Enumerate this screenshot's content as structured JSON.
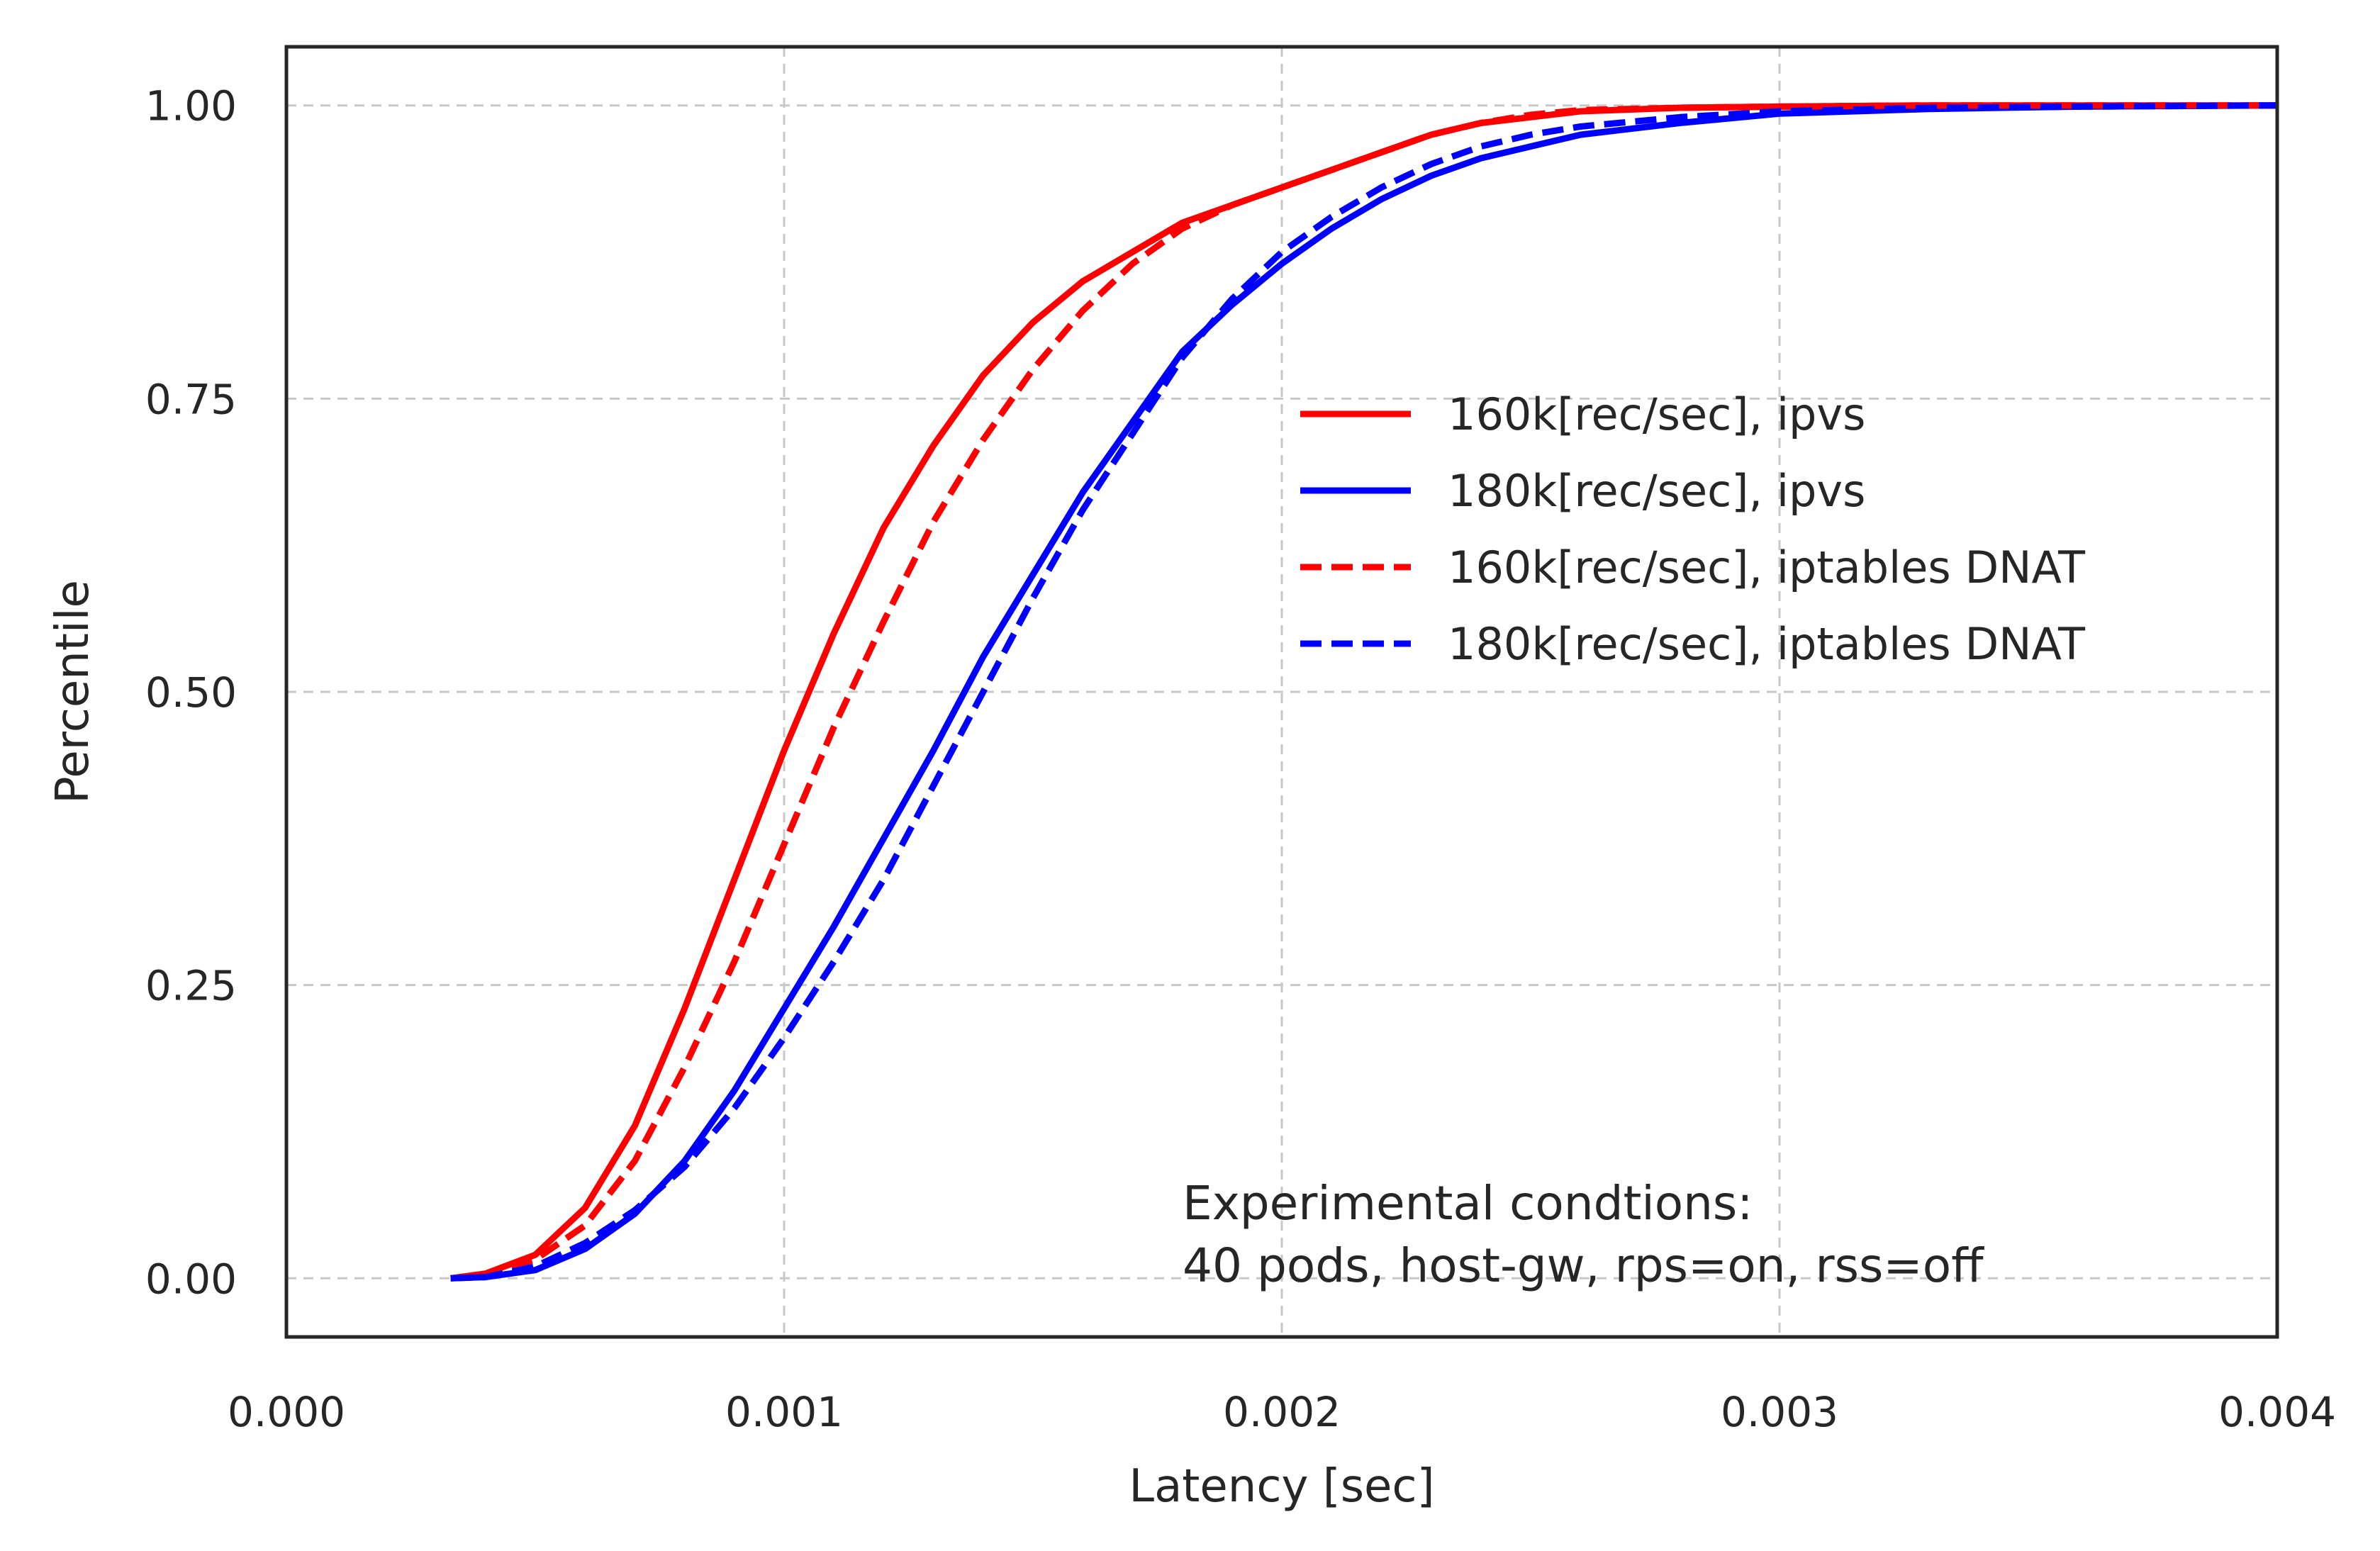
{
  "chart_data": {
    "type": "line",
    "xlabel": "Latency [sec]",
    "ylabel": "Percentile",
    "xlim": [
      0.0,
      0.004
    ],
    "ylim": [
      -0.05,
      1.05
    ],
    "xticks": [
      0.0,
      0.001,
      0.002,
      0.003,
      0.004
    ],
    "xtick_labels": [
      "0.000",
      "0.001",
      "0.002",
      "0.003",
      "0.004"
    ],
    "yticks": [
      0.0,
      0.25,
      0.5,
      0.75,
      1.0
    ],
    "ytick_labels": [
      "0.00",
      "0.25",
      "0.50",
      "0.75",
      "1.00"
    ],
    "grid": true,
    "legend_position": "center-right",
    "annotation": [
      "Experimental condtions:",
      "40 pods, host-gw, rps=on, rss=off"
    ],
    "series": [
      {
        "name": "160k[rec/sec], ipvs",
        "color": "#ff0000",
        "style": "solid",
        "x": [
          0.00033,
          0.0004,
          0.0005,
          0.0006,
          0.0007,
          0.0008,
          0.0009,
          0.001,
          0.0011,
          0.0012,
          0.0013,
          0.0014,
          0.0015,
          0.0016,
          0.0017,
          0.0018,
          0.0019,
          0.002,
          0.0021,
          0.0022,
          0.0023,
          0.0024,
          0.0025,
          0.0026,
          0.0028,
          0.003,
          0.0033,
          0.0036,
          0.004
        ],
        "y": [
          0.0,
          0.004,
          0.02,
          0.06,
          0.13,
          0.23,
          0.34,
          0.45,
          0.55,
          0.64,
          0.71,
          0.77,
          0.815,
          0.85,
          0.875,
          0.9,
          0.915,
          0.93,
          0.945,
          0.96,
          0.975,
          0.985,
          0.99,
          0.995,
          0.998,
          0.999,
          1.0,
          1.0,
          1.0
        ]
      },
      {
        "name": "180k[rec/sec], ipvs",
        "color": "#0000ff",
        "style": "solid",
        "x": [
          0.00033,
          0.0004,
          0.0005,
          0.0006,
          0.0007,
          0.0008,
          0.0009,
          0.001,
          0.0011,
          0.0012,
          0.0013,
          0.0014,
          0.0015,
          0.0016,
          0.0017,
          0.0018,
          0.0019,
          0.002,
          0.0021,
          0.0022,
          0.0023,
          0.0024,
          0.0025,
          0.0026,
          0.0028,
          0.003,
          0.0033,
          0.0036,
          0.004
        ],
        "y": [
          0.0,
          0.001,
          0.007,
          0.025,
          0.055,
          0.1,
          0.16,
          0.23,
          0.3,
          0.375,
          0.45,
          0.53,
          0.6,
          0.67,
          0.73,
          0.79,
          0.83,
          0.865,
          0.895,
          0.92,
          0.94,
          0.955,
          0.965,
          0.975,
          0.985,
          0.993,
          0.997,
          0.999,
          1.0
        ]
      },
      {
        "name": "160k[rec/sec], iptables DNAT",
        "color": "#ff0000",
        "style": "dashed",
        "x": [
          0.00033,
          0.0004,
          0.0005,
          0.0006,
          0.0007,
          0.0008,
          0.0009,
          0.001,
          0.0011,
          0.0012,
          0.0013,
          0.0014,
          0.0015,
          0.0016,
          0.0017,
          0.0018,
          0.0019,
          0.002,
          0.0021,
          0.0022,
          0.0023,
          0.0024,
          0.0025,
          0.0026,
          0.0028,
          0.003,
          0.0033,
          0.0036,
          0.004
        ],
        "y": [
          0.0,
          0.003,
          0.016,
          0.045,
          0.1,
          0.18,
          0.27,
          0.37,
          0.47,
          0.56,
          0.645,
          0.715,
          0.775,
          0.825,
          0.865,
          0.895,
          0.915,
          0.93,
          0.945,
          0.96,
          0.975,
          0.985,
          0.992,
          0.996,
          0.998,
          0.999,
          1.0,
          1.0,
          1.0
        ]
      },
      {
        "name": "180k[rec/sec], iptables DNAT",
        "color": "#0000ff",
        "style": "dashed",
        "x": [
          0.00033,
          0.0004,
          0.0005,
          0.0006,
          0.0007,
          0.0008,
          0.0009,
          0.001,
          0.0011,
          0.0012,
          0.0013,
          0.0014,
          0.0015,
          0.0016,
          0.0017,
          0.0018,
          0.0019,
          0.002,
          0.0021,
          0.0022,
          0.0023,
          0.0024,
          0.0025,
          0.0026,
          0.0028,
          0.003,
          0.0033,
          0.0036,
          0.004
        ],
        "y": [
          0.0,
          0.001,
          0.01,
          0.03,
          0.058,
          0.095,
          0.145,
          0.205,
          0.27,
          0.34,
          0.42,
          0.5,
          0.58,
          0.655,
          0.72,
          0.785,
          0.835,
          0.875,
          0.905,
          0.93,
          0.95,
          0.965,
          0.975,
          0.982,
          0.99,
          0.995,
          0.998,
          0.999,
          1.0
        ]
      }
    ]
  }
}
